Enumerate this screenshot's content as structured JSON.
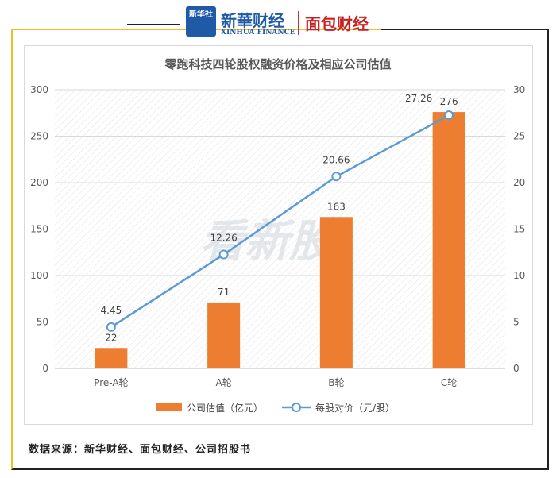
{
  "header": {
    "xinhua_badge": "新华社",
    "xinhua_title": "新華财经",
    "xinhua_en": "XINHUA FINANCE",
    "mianbao": "面包财经"
  },
  "watermark": "看新股",
  "source": "数据来源：新华财经、面包财经、公司招股书",
  "colors": {
    "bar": "#ed7d31",
    "line": "#5b9bd5",
    "frame_accent": "#f0c020"
  },
  "chart_data": {
    "type": "bar",
    "title": "零跑科技四轮股权融资价格及相应公司估值",
    "categories": [
      "Pre-A轮",
      "A轮",
      "B轮",
      "C轮"
    ],
    "series": [
      {
        "name": "公司估值（亿元）",
        "type": "bar",
        "axis": "left",
        "values": [
          22,
          71,
          163,
          276
        ]
      },
      {
        "name": "每股对价（元/股）",
        "type": "line",
        "axis": "right",
        "values": [
          4.45,
          12.26,
          20.66,
          27.26
        ]
      }
    ],
    "y_left": {
      "lim": [
        0,
        300
      ],
      "ticks": [
        0,
        50,
        100,
        150,
        200,
        250,
        300
      ]
    },
    "y_right": {
      "lim": [
        0,
        30
      ],
      "ticks": [
        0,
        5,
        10,
        15,
        20,
        25,
        30
      ]
    },
    "grid": true,
    "legend": "bottom"
  }
}
